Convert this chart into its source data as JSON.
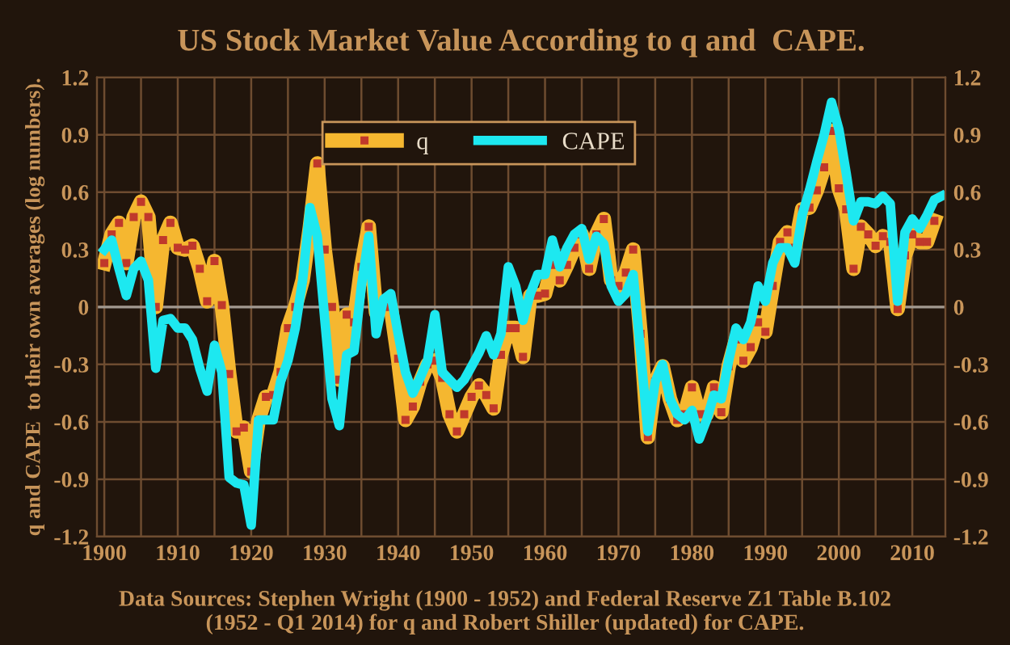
{
  "chart_data": {
    "type": "line",
    "title": "US Stock Market Value According to q and  CAPE.",
    "ylabel": "q and CAPE  to their own averages (log numbers).",
    "annotations": [
      "Data Sources: Stephen Wright (1900 - 1952) and Federal Reserve Z1 Table B.102\n(1952 - Q1 2014) for q and Robert Shiller (updated) for CAPE."
    ],
    "series": [
      {
        "name": "q",
        "color": "#f5b730",
        "marker": "square",
        "x": [
          1900,
          1901,
          1902,
          1903,
          1904,
          1905,
          1906,
          1907,
          1908,
          1909,
          1910,
          1911,
          1912,
          1913,
          1914,
          1915,
          1916,
          1917,
          1918,
          1919,
          1920,
          1921,
          1922,
          1923,
          1924,
          1925,
          1926,
          1927,
          1928,
          1929,
          1930,
          1931,
          1932,
          1933,
          1934,
          1935,
          1936,
          1937,
          1938,
          1939,
          1940,
          1941,
          1942,
          1943,
          1944,
          1945,
          1946,
          1947,
          1948,
          1949,
          1950,
          1951,
          1952,
          1953,
          1954,
          1955,
          1956,
          1957,
          1958,
          1959,
          1960,
          1961,
          1962,
          1963,
          1964,
          1965,
          1966,
          1967,
          1968,
          1969,
          1970,
          1971,
          1972,
          1973,
          1974,
          1975,
          1976,
          1977,
          1978,
          1979,
          1980,
          1981,
          1982,
          1983,
          1984,
          1985,
          1986,
          1987,
          1988,
          1989,
          1990,
          1991,
          1992,
          1993,
          1994,
          1995,
          1996,
          1997,
          1998,
          1999,
          2000,
          2001,
          2002,
          2003,
          2004,
          2005,
          2006,
          2007,
          2008,
          2009,
          2010,
          2011,
          2012,
          2013
        ],
        "values": [
          0.23,
          0.38,
          0.44,
          0.23,
          0.47,
          0.55,
          0.47,
          0.0,
          0.35,
          0.44,
          0.31,
          0.3,
          0.32,
          0.2,
          0.03,
          0.24,
          0.01,
          -0.35,
          -0.65,
          -0.63,
          -0.86,
          -0.59,
          -0.47,
          -0.46,
          -0.34,
          -0.11,
          0.0,
          0.14,
          0.42,
          0.75,
          0.3,
          0.0,
          -0.38,
          -0.04,
          -0.08,
          0.21,
          0.42,
          -0.03,
          0.0,
          0.0,
          -0.27,
          -0.59,
          -0.52,
          -0.39,
          -0.3,
          -0.28,
          -0.37,
          -0.56,
          -0.65,
          -0.56,
          -0.47,
          -0.41,
          -0.46,
          -0.53,
          -0.25,
          -0.11,
          -0.11,
          -0.26,
          0.06,
          0.06,
          0.07,
          0.22,
          0.14,
          0.22,
          0.31,
          0.38,
          0.2,
          0.38,
          0.46,
          0.14,
          0.11,
          0.18,
          0.3,
          -0.14,
          -0.68,
          -0.39,
          -0.31,
          -0.48,
          -0.59,
          -0.56,
          -0.42,
          -0.56,
          -0.56,
          -0.42,
          -0.55,
          -0.31,
          -0.17,
          -0.28,
          -0.21,
          -0.08,
          -0.13,
          0.11,
          0.34,
          0.39,
          0.31,
          0.51,
          0.52,
          0.61,
          0.73,
          0.92,
          0.62,
          0.51,
          0.2,
          0.42,
          0.38,
          0.32,
          0.37,
          0.34,
          -0.01,
          0.27,
          0.38,
          0.34,
          0.34,
          0.45
        ]
      },
      {
        "name": "CAPE",
        "color": "#1de8f0",
        "marker": "none",
        "x": [
          1900,
          1901,
          1902,
          1903,
          1904,
          1905,
          1906,
          1907,
          1908,
          1909,
          1910,
          1911,
          1912,
          1913,
          1914,
          1915,
          1916,
          1917,
          1918,
          1919,
          1920,
          1921,
          1922,
          1923,
          1924,
          1925,
          1926,
          1927,
          1928,
          1929,
          1930,
          1931,
          1932,
          1933,
          1934,
          1935,
          1936,
          1937,
          1938,
          1939,
          1940,
          1941,
          1942,
          1943,
          1944,
          1945,
          1946,
          1947,
          1948,
          1949,
          1950,
          1951,
          1952,
          1953,
          1954,
          1955,
          1956,
          1957,
          1958,
          1959,
          1960,
          1961,
          1962,
          1963,
          1964,
          1965,
          1966,
          1967,
          1968,
          1969,
          1970,
          1971,
          1972,
          1973,
          1974,
          1975,
          1976,
          1977,
          1978,
          1979,
          1980,
          1981,
          1982,
          1983,
          1984,
          1985,
          1986,
          1987,
          1988,
          1989,
          1990,
          1991,
          1992,
          1993,
          1994,
          1995,
          1996,
          1997,
          1998,
          1999,
          2000,
          2001,
          2002,
          2003,
          2004,
          2005,
          2006,
          2007,
          2008,
          2009,
          2010,
          2011,
          2012,
          2013,
          2014
        ],
        "values": [
          0.3,
          0.35,
          0.2,
          0.06,
          0.2,
          0.24,
          0.14,
          -0.32,
          -0.07,
          -0.06,
          -0.11,
          -0.11,
          -0.17,
          -0.32,
          -0.44,
          -0.2,
          -0.34,
          -0.89,
          -0.92,
          -0.93,
          -1.14,
          -0.59,
          -0.59,
          -0.59,
          -0.39,
          -0.28,
          -0.11,
          0.14,
          0.52,
          0.37,
          -0.06,
          -0.48,
          -0.62,
          -0.25,
          -0.23,
          0.11,
          0.37,
          -0.14,
          0.04,
          0.07,
          -0.14,
          -0.34,
          -0.45,
          -0.37,
          -0.28,
          -0.04,
          -0.34,
          -0.38,
          -0.42,
          -0.38,
          -0.31,
          -0.24,
          -0.15,
          -0.25,
          -0.14,
          0.21,
          0.11,
          -0.07,
          0.07,
          0.17,
          0.17,
          0.35,
          0.21,
          0.31,
          0.38,
          0.41,
          0.25,
          0.37,
          0.33,
          0.11,
          0.03,
          0.07,
          0.17,
          -0.23,
          -0.65,
          -0.39,
          -0.3,
          -0.48,
          -0.56,
          -0.59,
          -0.54,
          -0.69,
          -0.59,
          -0.46,
          -0.48,
          -0.28,
          -0.11,
          -0.17,
          -0.08,
          0.11,
          0.03,
          0.23,
          0.31,
          0.31,
          0.23,
          0.48,
          0.61,
          0.76,
          0.9,
          1.07,
          0.93,
          0.7,
          0.45,
          0.55,
          0.55,
          0.54,
          0.58,
          0.54,
          0.03,
          0.39,
          0.46,
          0.41,
          0.48,
          0.56,
          0.58
        ]
      }
    ],
    "xlim": [
      1899,
      2014.5
    ],
    "xticks": [
      1900,
      {
        "value": 1905,
        "label": null
      },
      1910,
      {
        "value": 1915,
        "label": null
      },
      1920,
      {
        "value": 1925,
        "label": null
      },
      1930,
      {
        "value": 1935,
        "label": null
      },
      1940,
      {
        "value": 1945,
        "label": null
      },
      1950,
      {
        "value": 1955,
        "label": null
      },
      1960,
      {
        "value": 1965,
        "label": null
      },
      1970,
      {
        "value": 1975,
        "label": null
      },
      1980,
      {
        "value": 1985,
        "label": null
      },
      1990,
      {
        "value": 1995,
        "label": null
      },
      2000,
      {
        "value": 2005,
        "label": null
      },
      2010
    ],
    "ylim": [
      -1.2,
      1.2
    ],
    "yticks": [
      -1.2,
      -0.9,
      -0.6,
      -0.3,
      0,
      0.3,
      0.6,
      0.9,
      1.2
    ],
    "y2lim": [
      -1.2,
      1.2
    ],
    "y2ticks": [
      -1.2,
      -0.9,
      -0.6,
      -0.3,
      0,
      0.3,
      0.6,
      0.9,
      1.2
    ],
    "ref_lines": [
      {
        "axis": "y",
        "value": 0,
        "color": "#a09890"
      }
    ],
    "grid": true,
    "legend": "top",
    "line_style": "solid"
  }
}
